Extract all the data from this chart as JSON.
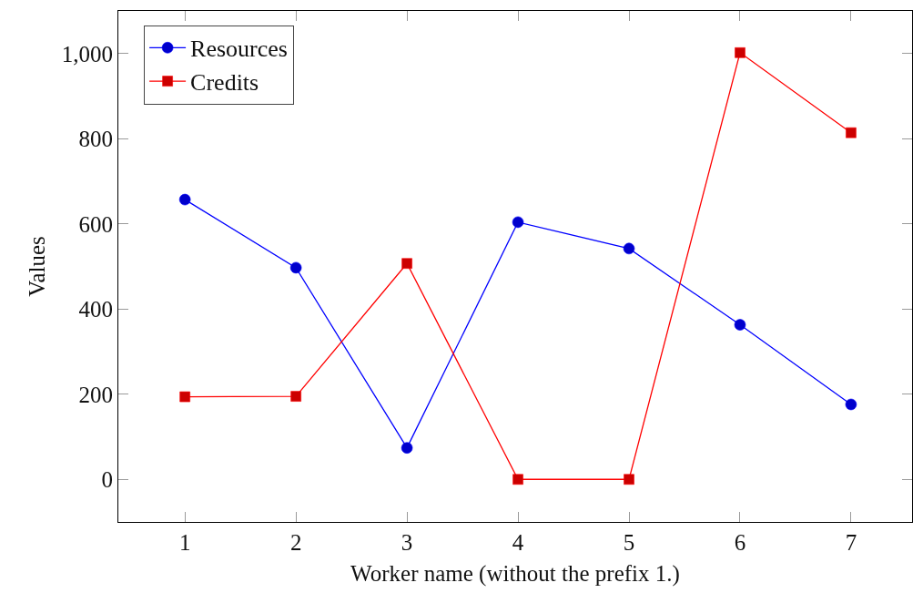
{
  "chart_data": {
    "type": "line",
    "xlabel": "Worker name (without the prefix 1.)",
    "ylabel": "Values",
    "x": [
      1,
      2,
      3,
      4,
      5,
      6,
      7
    ],
    "series": [
      {
        "name": "Resources",
        "color": "#0000ff",
        "marker": "circle",
        "values": [
          657,
          497,
          74,
          604,
          542,
          363,
          176
        ]
      },
      {
        "name": "Credits",
        "color": "#ff0000",
        "marker": "square",
        "values": [
          194,
          195,
          507,
          0,
          0,
          1002,
          814
        ]
      }
    ],
    "xlim": [
      0.4,
      7.55
    ],
    "xticks": [
      1,
      2,
      3,
      4,
      5,
      6,
      7
    ],
    "ylim": [
      -100,
      1100
    ],
    "yticks": [
      0,
      200,
      400,
      600,
      800,
      {
        "value": 1000,
        "label": "1,000"
      }
    ],
    "legend": "top left",
    "line_style": "solid"
  }
}
